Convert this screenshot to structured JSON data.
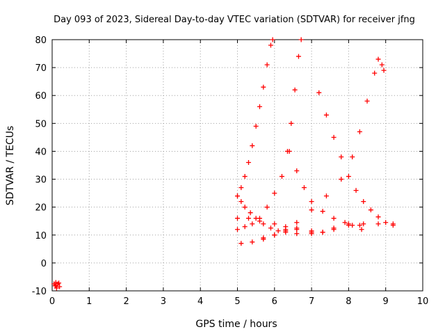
{
  "chart_data": {
    "type": "scatter",
    "title": "Day 093 of 2023, Sidereal Day-to-day VTEC variation (SDTVAR) for receiver jfng",
    "xlabel": "GPS time / hours",
    "ylabel": "SDTVAR / TECUs",
    "xlim": [
      0,
      10
    ],
    "ylim": [
      -10,
      80
    ],
    "xticks": [
      "0",
      "1",
      "2",
      "3",
      "4",
      "5",
      "6",
      "7",
      "8",
      "9",
      "10"
    ],
    "yticks": [
      "-10",
      "0",
      "10",
      "20",
      "30",
      "40",
      "50",
      "60",
      "70",
      "80"
    ],
    "grid": true,
    "marker": "plus",
    "color": "#ff0000",
    "series": [
      {
        "name": "cluster-near-zero",
        "points": [
          [
            0.05,
            -7.5
          ],
          [
            0.1,
            -8
          ],
          [
            0.15,
            -7.5
          ],
          [
            0.2,
            -8.5
          ],
          [
            0.1,
            -7
          ],
          [
            0.12,
            -9
          ],
          [
            0.18,
            -7.2
          ],
          [
            0.08,
            -8.2
          ]
        ]
      },
      {
        "name": "rising-track-a",
        "points": [
          [
            5.0,
            24
          ],
          [
            5.1,
            27
          ],
          [
            5.2,
            31
          ],
          [
            5.3,
            36
          ],
          [
            5.4,
            42
          ],
          [
            5.5,
            49
          ],
          [
            5.6,
            56
          ],
          [
            5.7,
            63
          ],
          [
            5.8,
            71
          ],
          [
            5.9,
            78
          ],
          [
            5.95,
            80
          ]
        ]
      },
      {
        "name": "falling-track-a",
        "points": [
          [
            5.0,
            24
          ],
          [
            5.1,
            22
          ],
          [
            5.2,
            20
          ],
          [
            5.35,
            18
          ],
          [
            5.5,
            16
          ],
          [
            5.7,
            14
          ],
          [
            5.9,
            12.5
          ],
          [
            6.1,
            11.5
          ],
          [
            6.3,
            11
          ],
          [
            6.6,
            10.5
          ],
          [
            7.0,
            10.5
          ]
        ]
      },
      {
        "name": "rising-track-b",
        "points": [
          [
            5.0,
            12
          ],
          [
            5.2,
            13
          ],
          [
            5.4,
            14
          ],
          [
            5.6,
            16
          ],
          [
            5.8,
            20
          ],
          [
            6.0,
            25
          ],
          [
            6.2,
            31
          ],
          [
            6.35,
            40
          ],
          [
            6.45,
            50
          ],
          [
            6.55,
            62
          ],
          [
            6.65,
            74
          ],
          [
            6.72,
            80
          ]
        ]
      },
      {
        "name": "flat-track-a",
        "points": [
          [
            5.0,
            16
          ],
          [
            5.3,
            16
          ],
          [
            5.6,
            15
          ],
          [
            6.0,
            14
          ],
          [
            6.3,
            13
          ],
          [
            6.6,
            12
          ],
          [
            7.0,
            11
          ],
          [
            7.3,
            11
          ],
          [
            7.6,
            12.5
          ],
          [
            8.0,
            13.5
          ],
          [
            8.4,
            14
          ],
          [
            8.8,
            14
          ],
          [
            9.2,
            14
          ]
        ]
      },
      {
        "name": "rising-track-c",
        "points": [
          [
            5.1,
            7
          ],
          [
            5.4,
            7.5
          ],
          [
            5.7,
            8.5
          ],
          [
            6.0,
            10
          ],
          [
            6.3,
            12
          ],
          [
            6.6,
            14.5
          ],
          [
            7.0,
            19
          ],
          [
            7.4,
            24
          ],
          [
            7.8,
            30
          ],
          [
            8.1,
            38
          ],
          [
            8.3,
            47
          ],
          [
            8.5,
            58
          ],
          [
            8.7,
            68
          ],
          [
            8.8,
            73
          ],
          [
            8.9,
            71
          ],
          [
            8.95,
            69
          ]
        ]
      },
      {
        "name": "falling-track-b",
        "points": [
          [
            6.4,
            40
          ],
          [
            6.6,
            33
          ],
          [
            6.8,
            27
          ],
          [
            7.0,
            22
          ],
          [
            7.3,
            18.5
          ],
          [
            7.6,
            16
          ],
          [
            7.9,
            14.5
          ],
          [
            8.1,
            13.5
          ],
          [
            8.35,
            12
          ]
        ]
      },
      {
        "name": "falling-track-c",
        "points": [
          [
            7.2,
            61
          ],
          [
            7.4,
            53
          ],
          [
            7.6,
            45
          ],
          [
            7.8,
            38
          ],
          [
            8.0,
            31
          ],
          [
            8.2,
            26
          ],
          [
            8.4,
            22
          ],
          [
            8.6,
            19
          ],
          [
            8.8,
            16.5
          ],
          [
            9.0,
            14.5
          ],
          [
            9.2,
            13.5
          ]
        ]
      },
      {
        "name": "low-track",
        "points": [
          [
            5.7,
            9
          ],
          [
            6.0,
            10
          ],
          [
            6.3,
            11.5
          ],
          [
            6.6,
            12.5
          ],
          [
            7.0,
            11.5
          ],
          [
            7.3,
            11
          ],
          [
            7.6,
            12
          ],
          [
            8.0,
            14
          ],
          [
            8.3,
            13.5
          ]
        ]
      }
    ]
  }
}
